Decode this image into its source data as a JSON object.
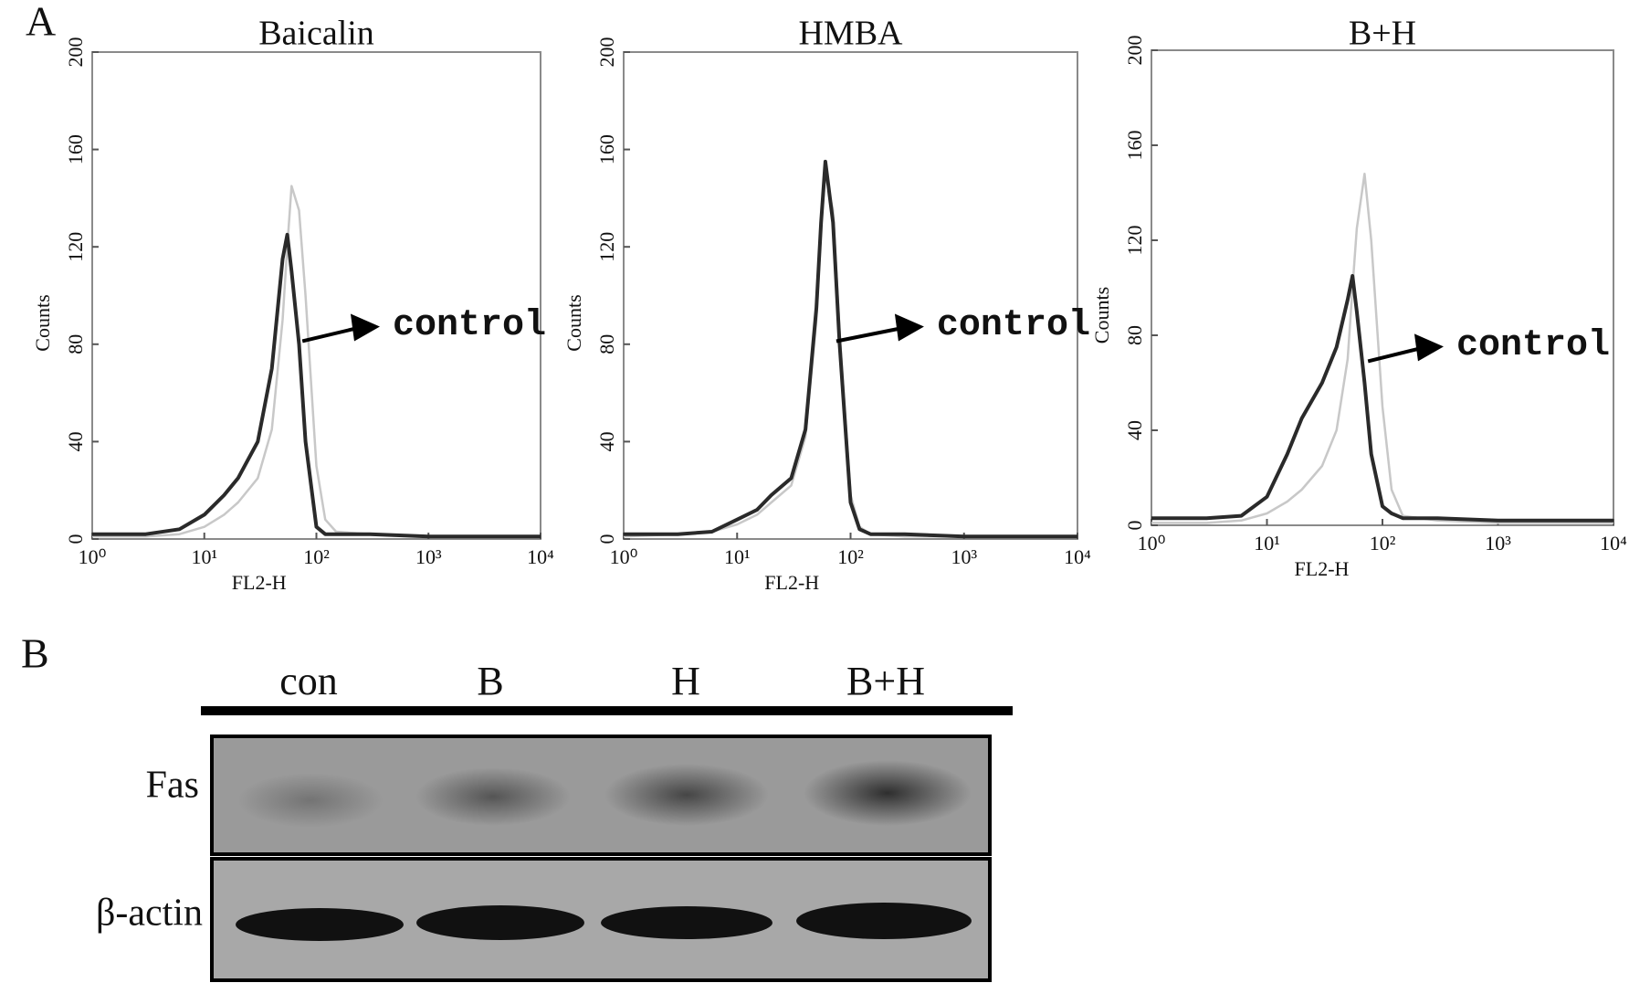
{
  "panel_a": {
    "label": "A"
  },
  "chart_data": [
    {
      "type": "line",
      "title": "Baicalin",
      "x_label": "FL2-H",
      "y_label": "Counts",
      "annotation": "control",
      "log_x": true,
      "x": [
        1,
        3,
        6,
        10,
        15,
        20,
        30,
        40,
        50,
        55,
        60,
        70,
        80,
        100,
        120,
        150,
        300,
        1000,
        10000
      ],
      "series": [
        {
          "color": "#c8c8c8",
          "values": [
            1,
            1,
            2,
            5,
            10,
            15,
            25,
            45,
            90,
            120,
            145,
            135,
            100,
            30,
            8,
            3,
            2,
            1,
            1
          ]
        },
        {
          "color": "#2a2a2a",
          "values": [
            2,
            2,
            4,
            10,
            18,
            25,
            40,
            70,
            115,
            125,
            110,
            80,
            40,
            5,
            2,
            2,
            2,
            1,
            1
          ]
        }
      ],
      "xlim": [
        1,
        10000
      ],
      "xticks": [
        {
          "value": 1,
          "label": "10⁰"
        },
        {
          "value": 10,
          "label": "10¹"
        },
        {
          "value": 100,
          "label": "10²"
        },
        {
          "value": 1000,
          "label": "10³"
        },
        {
          "value": 10000,
          "label": "10⁴"
        }
      ],
      "ylim": [
        0,
        200
      ],
      "yticks": [
        0,
        40,
        80,
        120,
        160,
        200
      ]
    },
    {
      "type": "line",
      "title": "HMBA",
      "x_label": "FL2-H",
      "y_label": "Counts",
      "annotation": "control",
      "log_x": true,
      "x": [
        1,
        3,
        6,
        10,
        15,
        20,
        30,
        40,
        50,
        55,
        60,
        70,
        80,
        100,
        120,
        150,
        300,
        1000,
        10000
      ],
      "series": [
        {
          "color": "#c8c8c8",
          "values": [
            1,
            2,
            3,
            6,
            10,
            15,
            22,
            42,
            90,
            128,
            150,
            135,
            85,
            18,
            5,
            2,
            1,
            1,
            1
          ]
        },
        {
          "color": "#2a2a2a",
          "values": [
            2,
            2,
            3,
            8,
            12,
            18,
            25,
            45,
            95,
            130,
            155,
            130,
            80,
            15,
            4,
            2,
            2,
            1,
            1
          ]
        }
      ],
      "xlim": [
        1,
        10000
      ],
      "xticks": [
        {
          "value": 1,
          "label": "10⁰"
        },
        {
          "value": 10,
          "label": "10¹"
        },
        {
          "value": 100,
          "label": "10²"
        },
        {
          "value": 1000,
          "label": "10³"
        },
        {
          "value": 10000,
          "label": "10⁴"
        }
      ],
      "ylim": [
        0,
        200
      ],
      "yticks": [
        0,
        40,
        80,
        120,
        160,
        200
      ]
    },
    {
      "type": "line",
      "title": "B+H",
      "x_label": "FL2-H",
      "y_label": "Counts",
      "annotation": "control",
      "log_x": true,
      "x": [
        1,
        3,
        6,
        10,
        15,
        20,
        30,
        40,
        50,
        55,
        60,
        70,
        80,
        100,
        120,
        150,
        300,
        1000,
        10000
      ],
      "series": [
        {
          "color": "#c8c8c8",
          "values": [
            1,
            1,
            2,
            5,
            10,
            15,
            25,
            40,
            70,
            100,
            125,
            148,
            120,
            50,
            15,
            4,
            2,
            1,
            1
          ]
        },
        {
          "color": "#2a2a2a",
          "values": [
            3,
            3,
            4,
            12,
            30,
            45,
            60,
            75,
            95,
            105,
            90,
            60,
            30,
            8,
            5,
            3,
            3,
            2,
            2
          ]
        }
      ],
      "xlim": [
        1,
        10000
      ],
      "xticks": [
        {
          "value": 1,
          "label": "10⁰"
        },
        {
          "value": 10,
          "label": "10¹"
        },
        {
          "value": 100,
          "label": "10²"
        },
        {
          "value": 1000,
          "label": "10³"
        },
        {
          "value": 10000,
          "label": "10⁴"
        }
      ],
      "ylim": [
        0,
        200
      ],
      "yticks": [
        0,
        40,
        80,
        120,
        160,
        200
      ]
    }
  ],
  "panel_b": {
    "label": "B",
    "lanes": [
      "con",
      "B",
      "H",
      "B+H"
    ],
    "rows": [
      "Fas",
      "β-actin"
    ]
  }
}
